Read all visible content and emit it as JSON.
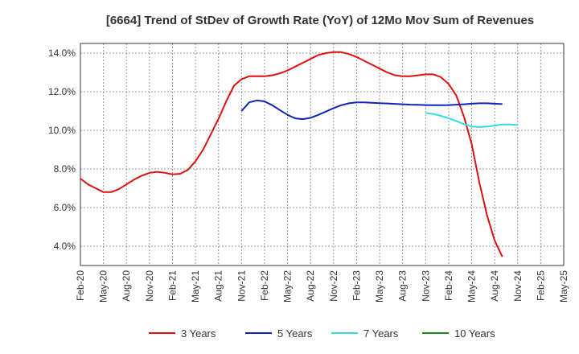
{
  "chart_data": {
    "type": "line",
    "title": "[6664]  Trend of StDev of Growth Rate (YoY) of 12Mo Mov Sum of Revenues",
    "xlabel": "",
    "ylabel": "",
    "ylim": [
      3.0,
      14.5
    ],
    "yticks": [
      4.0,
      6.0,
      8.0,
      10.0,
      12.0,
      14.0
    ],
    "ytick_labels": [
      "4.0%",
      "6.0%",
      "8.0%",
      "10.0%",
      "12.0%",
      "14.0%"
    ],
    "x_tick_labels": [
      "Feb-20",
      "May-20",
      "Aug-20",
      "Nov-20",
      "Feb-21",
      "May-21",
      "Aug-21",
      "Nov-21",
      "Feb-22",
      "May-22",
      "Aug-22",
      "Nov-22",
      "Feb-23",
      "May-23",
      "Aug-23",
      "Nov-23",
      "Feb-24",
      "May-24",
      "Aug-24",
      "Nov-24",
      "Feb-25",
      "May-25"
    ],
    "grid": true,
    "legend_position": "bottom",
    "series": [
      {
        "name": "3 Years",
        "color": "#dd1111",
        "start_index": 0,
        "values": [
          7.5,
          7.2,
          7.0,
          6.8,
          6.8,
          6.95,
          7.2,
          7.45,
          7.65,
          7.8,
          7.85,
          7.8,
          7.72,
          7.75,
          7.95,
          8.4,
          9.0,
          9.8,
          10.6,
          11.5,
          12.3,
          12.65,
          12.8,
          12.8,
          12.8,
          12.85,
          12.95,
          13.1,
          13.3,
          13.5,
          13.7,
          13.9,
          14.0,
          14.05,
          14.05,
          13.95,
          13.8,
          13.6,
          13.4,
          13.2,
          13.0,
          12.85,
          12.8,
          12.8,
          12.85,
          12.9,
          12.9,
          12.75,
          12.4,
          11.8,
          10.7,
          9.3,
          7.3,
          5.6,
          4.3,
          3.45
        ]
      },
      {
        "name": "5 Years",
        "color": "#1122bb",
        "start_index": 21,
        "values": [
          11.0,
          11.45,
          11.55,
          11.5,
          11.3,
          11.05,
          10.8,
          10.62,
          10.58,
          10.65,
          10.8,
          10.97,
          11.15,
          11.3,
          11.4,
          11.45,
          11.45,
          11.43,
          11.41,
          11.39,
          11.37,
          11.35,
          11.33,
          11.32,
          11.31,
          11.3,
          11.3,
          11.31,
          11.33,
          11.35,
          11.38,
          11.4,
          11.4,
          11.38,
          11.36
        ]
      },
      {
        "name": "7 Years",
        "color": "#33dddd",
        "start_index": 45,
        "values": [
          10.9,
          10.85,
          10.75,
          10.62,
          10.48,
          10.32,
          10.2,
          10.17,
          10.2,
          10.25,
          10.3,
          10.3,
          10.28
        ]
      },
      {
        "name": "10 Years",
        "color": "#228822",
        "start_index": 0,
        "values": []
      }
    ]
  }
}
